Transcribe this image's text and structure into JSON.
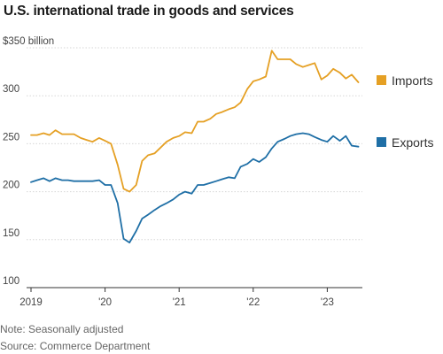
{
  "chart_data": {
    "type": "line",
    "title": "U.S. international trade in goods and services",
    "y_unit_label": "$350 billion",
    "ylim": [
      100,
      350
    ],
    "y_ticks": [
      350,
      300,
      250,
      200,
      150,
      100
    ],
    "y_tick_labels": [
      "$350 billion",
      "300",
      "250",
      "200",
      "150",
      "100"
    ],
    "xlim": [
      2019.0,
      2023.45
    ],
    "x_ticks": [
      2019,
      2020,
      2021,
      2022,
      2023
    ],
    "x_tick_labels": [
      "2019",
      "'20",
      "'21",
      "'22",
      "'23"
    ],
    "grid": true,
    "legend_position": "right",
    "series": [
      {
        "name": "Imports",
        "color": "#e5a024",
        "x": [
          2019.0,
          2019.08,
          2019.17,
          2019.25,
          2019.33,
          2019.42,
          2019.5,
          2019.58,
          2019.67,
          2019.75,
          2019.83,
          2019.92,
          2020.0,
          2020.08,
          2020.17,
          2020.25,
          2020.33,
          2020.42,
          2020.5,
          2020.58,
          2020.67,
          2020.75,
          2020.83,
          2020.92,
          2021.0,
          2021.08,
          2021.17,
          2021.25,
          2021.33,
          2021.42,
          2021.5,
          2021.58,
          2021.67,
          2021.75,
          2021.83,
          2021.92,
          2022.0,
          2022.08,
          2022.17,
          2022.25,
          2022.33,
          2022.42,
          2022.5,
          2022.58,
          2022.67,
          2022.75,
          2022.83,
          2022.92,
          2023.0,
          2023.08,
          2023.17,
          2023.25,
          2023.33,
          2023.42
        ],
        "values": [
          259,
          259,
          261,
          259,
          264,
          260,
          260,
          260,
          256,
          254,
          252,
          256,
          253,
          250,
          228,
          203,
          200,
          207,
          232,
          238,
          240,
          246,
          252,
          256,
          258,
          262,
          261,
          273,
          273,
          276,
          281,
          283,
          286,
          288,
          293,
          307,
          315,
          317,
          320,
          347,
          338,
          338,
          338,
          333,
          330,
          332,
          334,
          317,
          321,
          328,
          324,
          318,
          322,
          314
        ]
      },
      {
        "name": "Exports",
        "color": "#1f6fa6",
        "x": [
          2019.0,
          2019.08,
          2019.17,
          2019.25,
          2019.33,
          2019.42,
          2019.5,
          2019.58,
          2019.67,
          2019.75,
          2019.83,
          2019.92,
          2020.0,
          2020.08,
          2020.17,
          2020.25,
          2020.33,
          2020.42,
          2020.5,
          2020.58,
          2020.67,
          2020.75,
          2020.83,
          2020.92,
          2021.0,
          2021.08,
          2021.17,
          2021.25,
          2021.33,
          2021.42,
          2021.5,
          2021.58,
          2021.67,
          2021.75,
          2021.83,
          2021.92,
          2022.0,
          2022.08,
          2022.17,
          2022.25,
          2022.33,
          2022.42,
          2022.5,
          2022.58,
          2022.67,
          2022.75,
          2022.83,
          2022.92,
          2023.0,
          2023.08,
          2023.17,
          2023.25,
          2023.33,
          2023.42
        ],
        "values": [
          210,
          212,
          214,
          211,
          214,
          212,
          212,
          211,
          211,
          211,
          211,
          212,
          207,
          207,
          188,
          151,
          147,
          159,
          172,
          176,
          181,
          185,
          188,
          192,
          197,
          200,
          198,
          207,
          207,
          209,
          211,
          213,
          215,
          214,
          226,
          229,
          234,
          231,
          236,
          245,
          252,
          255,
          258,
          260,
          261,
          260,
          257,
          254,
          252,
          258,
          253,
          258,
          248,
          247
        ]
      }
    ]
  },
  "notes": {
    "note": "Note: Seasonally adjusted",
    "source": "Source: Commerce Department"
  }
}
